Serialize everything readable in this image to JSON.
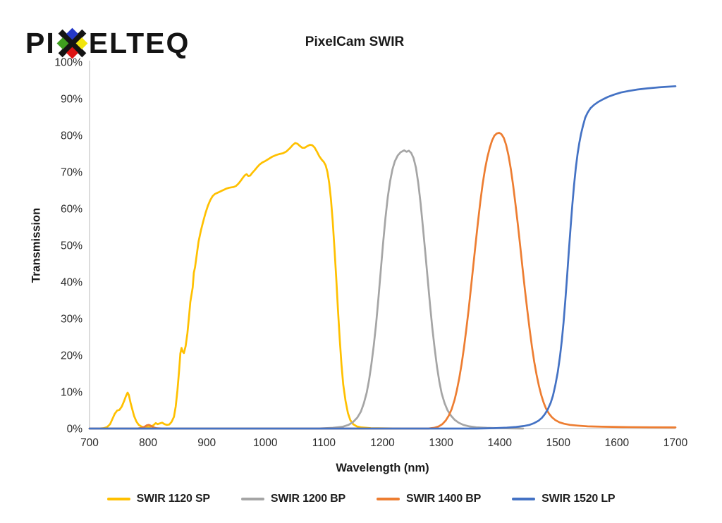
{
  "logo": {
    "prefix": "PI",
    "suffix": "ELTEQ",
    "colors": {
      "x": "#141414",
      "blue": "#2438C8",
      "green": "#3E9E1E",
      "yellow": "#F2E50C",
      "red": "#DD1414"
    }
  },
  "title": "PixelCam SWIR",
  "axes": {
    "y_label": "Transmission",
    "x_label": "Wavelength (nm)",
    "y_ticks": [
      "100%",
      "90%",
      "80%",
      "70%",
      "60%",
      "50%",
      "40%",
      "30%",
      "20%",
      "10%",
      "0%"
    ],
    "x_ticks": [
      "700",
      "800",
      "900",
      "1000",
      "1100",
      "1200",
      "1300",
      "1400",
      "1500",
      "1600",
      "1700"
    ]
  },
  "chart_data": {
    "type": "line",
    "title": "PixelCam SWIR",
    "xlabel": "Wavelength (nm)",
    "ylabel": "Transmission",
    "xlim": [
      700,
      1700
    ],
    "ylim": [
      0,
      100
    ],
    "y_tick_format": "percent",
    "grid": false,
    "legend_position": "bottom",
    "axis_color": "#C9C9C9",
    "series": [
      {
        "name": "SWIR 1120 SP",
        "color": "#FFC000",
        "points": [
          [
            700,
            0
          ],
          [
            716,
            0
          ],
          [
            724,
            0.1
          ],
          [
            730,
            0.4
          ],
          [
            735,
            1.2
          ],
          [
            739,
            2.6
          ],
          [
            743,
            4
          ],
          [
            747,
            4.9
          ],
          [
            751,
            5.1
          ],
          [
            755,
            6
          ],
          [
            759,
            7.5
          ],
          [
            762,
            8.8
          ],
          [
            765,
            9.8
          ],
          [
            767,
            9.2
          ],
          [
            770,
            7
          ],
          [
            773,
            5.2
          ],
          [
            776,
            3.4
          ],
          [
            780,
            1.9
          ],
          [
            784,
            1
          ],
          [
            789,
            0.5
          ],
          [
            795,
            0.3
          ],
          [
            800,
            0.4
          ],
          [
            805,
            0.6
          ],
          [
            809,
            0.9
          ],
          [
            813,
            1.5
          ],
          [
            816,
            1.2
          ],
          [
            820,
            1.4
          ],
          [
            824,
            1.6
          ],
          [
            828,
            1.2
          ],
          [
            832,
            1
          ],
          [
            836,
            1.1
          ],
          [
            840,
            1.8
          ],
          [
            844,
            3.2
          ],
          [
            847,
            6
          ],
          [
            850,
            10.5
          ],
          [
            853,
            16
          ],
          [
            855,
            20.5
          ],
          [
            857,
            22
          ],
          [
            859,
            21
          ],
          [
            861,
            20.6
          ],
          [
            864,
            22.5
          ],
          [
            867,
            26
          ],
          [
            870,
            31
          ],
          [
            872,
            34.5
          ],
          [
            874,
            36.5
          ],
          [
            876,
            38.5
          ],
          [
            878,
            42.5
          ],
          [
            880,
            44
          ],
          [
            883,
            47.5
          ],
          [
            886,
            51
          ],
          [
            890,
            54
          ],
          [
            894,
            56.5
          ],
          [
            898,
            58.8
          ],
          [
            902,
            60.8
          ],
          [
            906,
            62.3
          ],
          [
            910,
            63.4
          ],
          [
            914,
            64
          ],
          [
            918,
            64.3
          ],
          [
            922,
            64.6
          ],
          [
            926,
            64.9
          ],
          [
            930,
            65.2
          ],
          [
            934,
            65.5
          ],
          [
            938,
            65.7
          ],
          [
            942,
            65.8
          ],
          [
            946,
            65.9
          ],
          [
            950,
            66.2
          ],
          [
            954,
            66.8
          ],
          [
            958,
            67.6
          ],
          [
            962,
            68.5
          ],
          [
            965,
            69.1
          ],
          [
            968,
            69.4
          ],
          [
            971,
            68.9
          ],
          [
            974,
            69
          ],
          [
            978,
            69.8
          ],
          [
            982,
            70.5
          ],
          [
            986,
            71.3
          ],
          [
            990,
            72
          ],
          [
            995,
            72.6
          ],
          [
            1000,
            73
          ],
          [
            1006,
            73.6
          ],
          [
            1012,
            74.2
          ],
          [
            1018,
            74.6
          ],
          [
            1024,
            74.9
          ],
          [
            1030,
            75.1
          ],
          [
            1036,
            75.6
          ],
          [
            1042,
            76.5
          ],
          [
            1047,
            77.4
          ],
          [
            1051,
            77.9
          ],
          [
            1055,
            77.7
          ],
          [
            1059,
            77.1
          ],
          [
            1063,
            76.6
          ],
          [
            1067,
            76.6
          ],
          [
            1071,
            77
          ],
          [
            1076,
            77.4
          ],
          [
            1080,
            77.3
          ],
          [
            1084,
            76.7
          ],
          [
            1088,
            75.6
          ],
          [
            1092,
            74.3
          ],
          [
            1096,
            73.4
          ],
          [
            1100,
            72.7
          ],
          [
            1103,
            71.8
          ],
          [
            1106,
            70
          ],
          [
            1109,
            67
          ],
          [
            1112,
            62.5
          ],
          [
            1115,
            56.5
          ],
          [
            1118,
            49
          ],
          [
            1121,
            41
          ],
          [
            1124,
            32.5
          ],
          [
            1127,
            24.5
          ],
          [
            1130,
            17.5
          ],
          [
            1133,
            12
          ],
          [
            1137,
            7.5
          ],
          [
            1141,
            4.2
          ],
          [
            1145,
            2.3
          ],
          [
            1150,
            1.2
          ],
          [
            1156,
            0.6
          ],
          [
            1164,
            0.3
          ],
          [
            1180,
            0.1
          ],
          [
            1230,
            0
          ]
        ]
      },
      {
        "name": "SWIR 1200 BP",
        "color": "#A5A5A5",
        "points": [
          [
            700,
            0
          ],
          [
            1090,
            0
          ],
          [
            1115,
            0.2
          ],
          [
            1132,
            0.5
          ],
          [
            1142,
            1
          ],
          [
            1150,
            1.8
          ],
          [
            1157,
            3
          ],
          [
            1163,
            4.6
          ],
          [
            1168,
            6.8
          ],
          [
            1173,
            9.8
          ],
          [
            1177,
            13.2
          ],
          [
            1181,
            17.5
          ],
          [
            1185,
            22.5
          ],
          [
            1189,
            28.5
          ],
          [
            1193,
            35.5
          ],
          [
            1197,
            43
          ],
          [
            1201,
            50.5
          ],
          [
            1205,
            57.5
          ],
          [
            1209,
            63.2
          ],
          [
            1213,
            67.5
          ],
          [
            1217,
            70.7
          ],
          [
            1221,
            72.9
          ],
          [
            1226,
            74.5
          ],
          [
            1231,
            75.4
          ],
          [
            1237,
            75.9
          ],
          [
            1241,
            75.5
          ],
          [
            1245,
            75.8
          ],
          [
            1249,
            75.2
          ],
          [
            1253,
            73.8
          ],
          [
            1257,
            71.2
          ],
          [
            1261,
            67
          ],
          [
            1265,
            61.5
          ],
          [
            1269,
            55
          ],
          [
            1273,
            48
          ],
          [
            1277,
            41
          ],
          [
            1281,
            34
          ],
          [
            1285,
            27.5
          ],
          [
            1289,
            21.8
          ],
          [
            1293,
            16.8
          ],
          [
            1297,
            12.8
          ],
          [
            1301,
            9.6
          ],
          [
            1306,
            6.9
          ],
          [
            1311,
            5
          ],
          [
            1317,
            3.5
          ],
          [
            1323,
            2.4
          ],
          [
            1330,
            1.6
          ],
          [
            1338,
            1
          ],
          [
            1348,
            0.6
          ],
          [
            1360,
            0.35
          ],
          [
            1378,
            0.2
          ],
          [
            1400,
            0.1
          ],
          [
            1440,
            0
          ]
        ]
      },
      {
        "name": "SWIR 1400 BP",
        "color": "#ED7D31",
        "points": [
          [
            700,
            0
          ],
          [
            782,
            0
          ],
          [
            789,
            0.2
          ],
          [
            794,
            0.5
          ],
          [
            798,
            0.9
          ],
          [
            801,
            1
          ],
          [
            804,
            0.8
          ],
          [
            808,
            0.4
          ],
          [
            814,
            0.1
          ],
          [
            826,
            0
          ],
          [
            1278,
            0
          ],
          [
            1288,
            0.2
          ],
          [
            1296,
            0.6
          ],
          [
            1302,
            1.2
          ],
          [
            1308,
            2.2
          ],
          [
            1313,
            3.5
          ],
          [
            1318,
            5.3
          ],
          [
            1323,
            7.8
          ],
          [
            1327,
            10.5
          ],
          [
            1331,
            13.8
          ],
          [
            1335,
            17.6
          ],
          [
            1339,
            22
          ],
          [
            1343,
            27
          ],
          [
            1347,
            32.5
          ],
          [
            1351,
            38.5
          ],
          [
            1355,
            44.5
          ],
          [
            1359,
            50.5
          ],
          [
            1363,
            56.5
          ],
          [
            1367,
            62
          ],
          [
            1371,
            66.8
          ],
          [
            1375,
            70.8
          ],
          [
            1379,
            74
          ],
          [
            1383,
            76.6
          ],
          [
            1387,
            78.6
          ],
          [
            1391,
            79.9
          ],
          [
            1395,
            80.5
          ],
          [
            1399,
            80.7
          ],
          [
            1403,
            80.3
          ],
          [
            1407,
            79.3
          ],
          [
            1411,
            77.4
          ],
          [
            1415,
            74.5
          ],
          [
            1419,
            70.8
          ],
          [
            1423,
            66.3
          ],
          [
            1427,
            61.2
          ],
          [
            1431,
            55.6
          ],
          [
            1435,
            49.8
          ],
          [
            1439,
            43.8
          ],
          [
            1443,
            38
          ],
          [
            1447,
            32.4
          ],
          [
            1451,
            27.2
          ],
          [
            1455,
            22.4
          ],
          [
            1459,
            18.2
          ],
          [
            1463,
            14.6
          ],
          [
            1467,
            11.6
          ],
          [
            1471,
            9.1
          ],
          [
            1475,
            7.1
          ],
          [
            1479,
            5.5
          ],
          [
            1484,
            4.1
          ],
          [
            1489,
            3.1
          ],
          [
            1495,
            2.3
          ],
          [
            1502,
            1.7
          ],
          [
            1510,
            1.3
          ],
          [
            1520,
            1
          ],
          [
            1533,
            0.8
          ],
          [
            1550,
            0.6
          ],
          [
            1575,
            0.5
          ],
          [
            1610,
            0.4
          ],
          [
            1655,
            0.35
          ],
          [
            1700,
            0.3
          ]
        ]
      },
      {
        "name": "SWIR 1520 LP",
        "color": "#4472C4",
        "points": [
          [
            700,
            0
          ],
          [
            1360,
            0
          ],
          [
            1390,
            0.1
          ],
          [
            1412,
            0.25
          ],
          [
            1428,
            0.45
          ],
          [
            1441,
            0.7
          ],
          [
            1451,
            1
          ],
          [
            1459,
            1.5
          ],
          [
            1466,
            2.1
          ],
          [
            1472,
            2.9
          ],
          [
            1477,
            3.9
          ],
          [
            1482,
            5.2
          ],
          [
            1487,
            7
          ],
          [
            1491,
            9
          ],
          [
            1495,
            11.8
          ],
          [
            1499,
            15.3
          ],
          [
            1503,
            19.8
          ],
          [
            1506,
            24
          ],
          [
            1509,
            29
          ],
          [
            1512,
            35
          ],
          [
            1515,
            41.5
          ],
          [
            1518,
            48.5
          ],
          [
            1521,
            55
          ],
          [
            1524,
            61
          ],
          [
            1527,
            66.5
          ],
          [
            1530,
            71.2
          ],
          [
            1533,
            75
          ],
          [
            1536,
            78
          ],
          [
            1539,
            80.5
          ],
          [
            1542,
            82.5
          ],
          [
            1546,
            84.8
          ],
          [
            1550,
            86.2
          ],
          [
            1555,
            87.4
          ],
          [
            1561,
            88.3
          ],
          [
            1568,
            89.1
          ],
          [
            1576,
            89.8
          ],
          [
            1585,
            90.5
          ],
          [
            1595,
            91.1
          ],
          [
            1607,
            91.7
          ],
          [
            1620,
            92.1
          ],
          [
            1635,
            92.5
          ],
          [
            1652,
            92.8
          ],
          [
            1672,
            93.1
          ],
          [
            1700,
            93.4
          ]
        ]
      }
    ]
  }
}
